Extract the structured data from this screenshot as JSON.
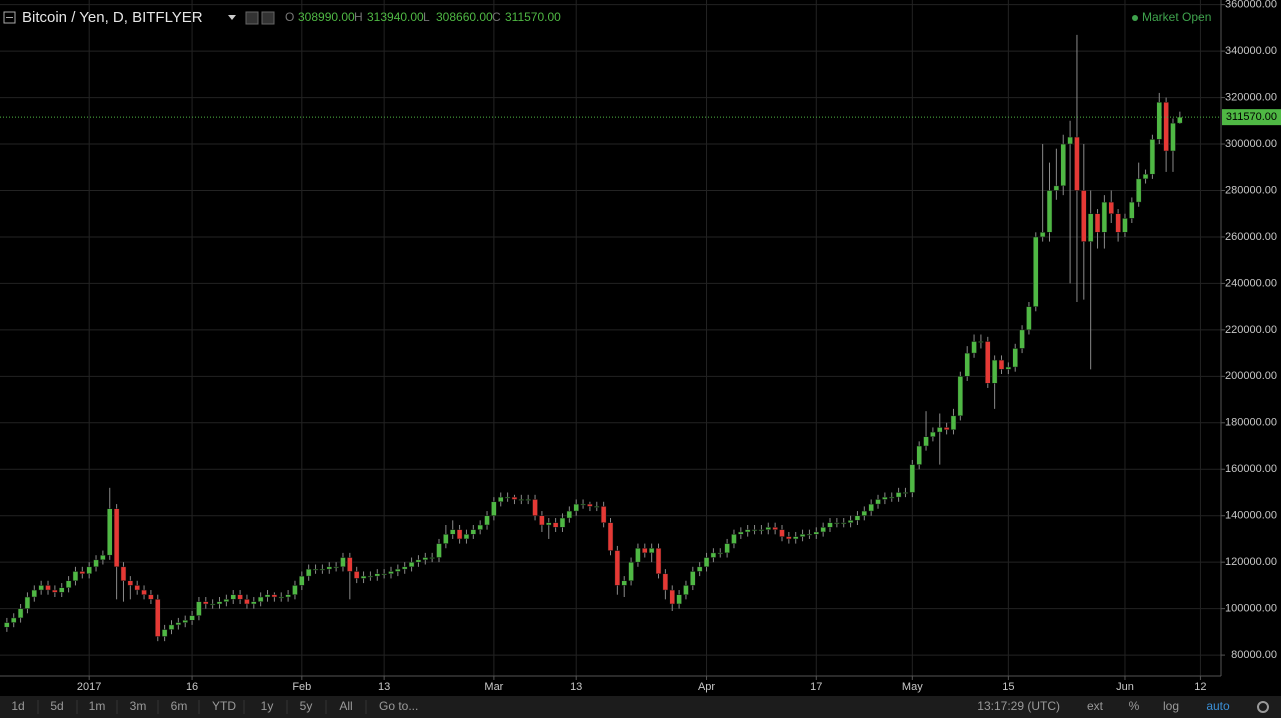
{
  "header": {
    "title": "Bitcoin / Yen, D, BITFLYER",
    "ohlc": [
      {
        "key": "O",
        "label": "308990.00"
      },
      {
        "key": "H",
        "label": "313940.00"
      },
      {
        "key": "L",
        "label": "308660.00"
      },
      {
        "key": "C",
        "label": "311570.00"
      }
    ],
    "status": "Market Open"
  },
  "toolbar": {
    "ranges": [
      "1d",
      "5d",
      "1m",
      "3m",
      "6m",
      "YTD",
      "1y",
      "5y",
      "All"
    ],
    "goto": "Go to...",
    "time": "13:17:29 (UTC)",
    "options": [
      "ext",
      "%",
      "log",
      "auto"
    ]
  },
  "chart_data": {
    "type": "candlestick",
    "up_color": "#4fb844",
    "down_color": "#e53935",
    "grid": true,
    "last_price": {
      "value": 311570,
      "label": "311570.00"
    },
    "xlim": [
      -1,
      177
    ],
    "xticks": [
      {
        "value": 12,
        "label": "2017"
      },
      {
        "value": 27,
        "label": "16"
      },
      {
        "value": 43,
        "label": "Feb"
      },
      {
        "value": 55,
        "label": "13"
      },
      {
        "value": 71,
        "label": "Mar"
      },
      {
        "value": 83,
        "label": "13"
      },
      {
        "value": 102,
        "label": "Apr"
      },
      {
        "value": 118,
        "label": "17"
      },
      {
        "value": 132,
        "label": "May"
      },
      {
        "value": 146,
        "label": "15"
      },
      {
        "value": 163,
        "label": "Jun"
      },
      {
        "value": 174,
        "label": "12"
      }
    ],
    "ylim": [
      71000,
      362000
    ],
    "yticks": [
      {
        "value": 80000,
        "label": "80000.00"
      },
      {
        "value": 100000,
        "label": "100000.00"
      },
      {
        "value": 120000,
        "label": "120000.00"
      },
      {
        "value": 140000,
        "label": "140000.00"
      },
      {
        "value": 160000,
        "label": "160000.00"
      },
      {
        "value": 180000,
        "label": "180000.00"
      },
      {
        "value": 200000,
        "label": "200000.00"
      },
      {
        "value": 220000,
        "label": "220000.00"
      },
      {
        "value": 240000,
        "label": "240000.00"
      },
      {
        "value": 260000,
        "label": "260000.00"
      },
      {
        "value": 280000,
        "label": "280000.00"
      },
      {
        "value": 300000,
        "label": "300000.00"
      },
      {
        "value": 320000,
        "label": "320000.00"
      },
      {
        "value": 340000,
        "label": "340000.00"
      },
      {
        "value": 360000,
        "label": "360000.00"
      }
    ],
    "x": [
      0,
      1,
      2,
      3,
      4,
      5,
      6,
      7,
      8,
      9,
      10,
      11,
      12,
      13,
      14,
      15,
      16,
      17,
      18,
      19,
      20,
      21,
      22,
      23,
      24,
      25,
      26,
      27,
      28,
      29,
      30,
      31,
      32,
      33,
      34,
      35,
      36,
      37,
      38,
      39,
      40,
      41,
      42,
      43,
      44,
      45,
      46,
      47,
      48,
      49,
      50,
      51,
      52,
      53,
      54,
      55,
      56,
      57,
      58,
      59,
      60,
      61,
      62,
      63,
      64,
      65,
      66,
      67,
      68,
      69,
      70,
      71,
      72,
      73,
      74,
      75,
      76,
      77,
      78,
      79,
      80,
      81,
      82,
      83,
      84,
      85,
      86,
      87,
      88,
      89,
      90,
      91,
      92,
      93,
      94,
      95,
      96,
      97,
      98,
      99,
      100,
      101,
      102,
      103,
      104,
      105,
      106,
      107,
      108,
      109,
      110,
      111,
      112,
      113,
      114,
      115,
      116,
      117,
      118,
      119,
      120,
      121,
      122,
      123,
      124,
      125,
      126,
      127,
      128,
      129,
      130,
      131,
      132,
      133,
      134,
      135,
      136,
      137,
      138,
      139,
      140,
      141,
      142,
      143,
      144,
      145,
      146,
      147,
      148,
      149,
      150,
      151,
      152,
      153,
      154,
      155,
      156,
      157,
      158,
      159,
      160,
      161,
      162,
      163,
      164,
      165,
      166,
      167,
      168,
      169,
      170,
      171
    ],
    "candles": [
      [
        92000,
        96000,
        90000,
        94000
      ],
      [
        94000,
        98000,
        92000,
        96000
      ],
      [
        96000,
        102000,
        94000,
        100000
      ],
      [
        100000,
        107000,
        98000,
        105000
      ],
      [
        105000,
        110000,
        103000,
        108000
      ],
      [
        108000,
        112000,
        106000,
        110000
      ],
      [
        110000,
        112000,
        106000,
        108000
      ],
      [
        108000,
        110000,
        105000,
        107000
      ],
      [
        107000,
        111000,
        105000,
        109000
      ],
      [
        109000,
        114000,
        107000,
        112000
      ],
      [
        112000,
        118000,
        110000,
        116000
      ],
      [
        116000,
        118000,
        113000,
        115000
      ],
      [
        115000,
        120000,
        113000,
        118000
      ],
      [
        118000,
        123000,
        116000,
        121000
      ],
      [
        121000,
        125000,
        119000,
        123000
      ],
      [
        123000,
        152000,
        121000,
        143000
      ],
      [
        143000,
        145000,
        104000,
        118000
      ],
      [
        118000,
        120000,
        103000,
        112000
      ],
      [
        112000,
        114000,
        104000,
        110000
      ],
      [
        110000,
        112000,
        106000,
        108000
      ],
      [
        108000,
        110000,
        104000,
        106000
      ],
      [
        106000,
        108000,
        102000,
        104000
      ],
      [
        104000,
        106000,
        86000,
        88000
      ],
      [
        88000,
        93000,
        86000,
        91000
      ],
      [
        91000,
        95000,
        89000,
        93000
      ],
      [
        93000,
        96000,
        91000,
        94000
      ],
      [
        94000,
        97000,
        92000,
        95000
      ],
      [
        95000,
        99000,
        93000,
        97000
      ],
      [
        97000,
        105000,
        95000,
        103000
      ],
      [
        103000,
        105000,
        100000,
        102000
      ],
      [
        102000,
        104000,
        100000,
        102000
      ],
      [
        102000,
        105000,
        100000,
        103000
      ],
      [
        103000,
        106000,
        101000,
        104000
      ],
      [
        104000,
        108000,
        102000,
        106000
      ],
      [
        106000,
        108000,
        102000,
        104000
      ],
      [
        104000,
        106000,
        100000,
        102000
      ],
      [
        102000,
        105000,
        100000,
        103000
      ],
      [
        103000,
        107000,
        101000,
        105000
      ],
      [
        105000,
        108000,
        103000,
        106000
      ],
      [
        106000,
        107000,
        103000,
        105000
      ],
      [
        105000,
        107000,
        103000,
        105000
      ],
      [
        105000,
        108000,
        103000,
        106000
      ],
      [
        106000,
        112000,
        104000,
        110000
      ],
      [
        110000,
        116000,
        108000,
        114000
      ],
      [
        114000,
        119000,
        112000,
        117000
      ],
      [
        117000,
        119000,
        115000,
        117000
      ],
      [
        117000,
        119000,
        115000,
        117000
      ],
      [
        117000,
        120000,
        115000,
        118000
      ],
      [
        118000,
        120000,
        116000,
        118000
      ],
      [
        118000,
        124000,
        116000,
        122000
      ],
      [
        122000,
        124000,
        104000,
        116000
      ],
      [
        116000,
        118000,
        111000,
        113000
      ],
      [
        113000,
        116000,
        111000,
        114000
      ],
      [
        114000,
        116000,
        112000,
        114000
      ],
      [
        114000,
        117000,
        112000,
        115000
      ],
      [
        115000,
        117000,
        113000,
        115000
      ],
      [
        115000,
        118000,
        113000,
        116000
      ],
      [
        116000,
        119000,
        114000,
        117000
      ],
      [
        117000,
        120000,
        115000,
        118000
      ],
      [
        118000,
        122000,
        116000,
        120000
      ],
      [
        120000,
        123000,
        118000,
        121000
      ],
      [
        121000,
        124000,
        119000,
        122000
      ],
      [
        122000,
        124000,
        120000,
        122000
      ],
      [
        122000,
        130000,
        120000,
        128000
      ],
      [
        128000,
        136000,
        126000,
        132000
      ],
      [
        132000,
        138000,
        130000,
        134000
      ],
      [
        134000,
        136000,
        128000,
        130000
      ],
      [
        130000,
        134000,
        128000,
        132000
      ],
      [
        132000,
        136000,
        130000,
        134000
      ],
      [
        134000,
        138000,
        132000,
        136000
      ],
      [
        136000,
        142000,
        134000,
        140000
      ],
      [
        140000,
        148000,
        138000,
        146000
      ],
      [
        146000,
        150000,
        144000,
        148000
      ],
      [
        148000,
        150000,
        146000,
        148000
      ],
      [
        148000,
        149000,
        145000,
        147000
      ],
      [
        147000,
        149000,
        145000,
        147000
      ],
      [
        147000,
        149000,
        145000,
        147000
      ],
      [
        147000,
        149000,
        138000,
        140000
      ],
      [
        140000,
        142000,
        133000,
        136000
      ],
      [
        136000,
        139000,
        130000,
        137000
      ],
      [
        137000,
        139000,
        133000,
        135000
      ],
      [
        135000,
        141000,
        133000,
        139000
      ],
      [
        139000,
        144000,
        137000,
        142000
      ],
      [
        142000,
        147000,
        140000,
        145000
      ],
      [
        145000,
        147000,
        143000,
        145000
      ],
      [
        145000,
        146000,
        142000,
        144000
      ],
      [
        144000,
        146000,
        142000,
        144000
      ],
      [
        144000,
        146000,
        135000,
        137000
      ],
      [
        137000,
        139000,
        123000,
        125000
      ],
      [
        125000,
        127000,
        106000,
        110000
      ],
      [
        110000,
        114000,
        105000,
        112000
      ],
      [
        112000,
        122000,
        110000,
        120000
      ],
      [
        120000,
        128000,
        118000,
        126000
      ],
      [
        126000,
        128000,
        122000,
        124000
      ],
      [
        124000,
        128000,
        120000,
        126000
      ],
      [
        126000,
        128000,
        113000,
        115000
      ],
      [
        115000,
        117000,
        104000,
        108000
      ],
      [
        108000,
        110000,
        99000,
        102000
      ],
      [
        102000,
        108000,
        100000,
        106000
      ],
      [
        106000,
        112000,
        104000,
        110000
      ],
      [
        110000,
        118000,
        108000,
        116000
      ],
      [
        116000,
        120000,
        114000,
        118000
      ],
      [
        118000,
        124000,
        116000,
        122000
      ],
      [
        122000,
        126000,
        120000,
        124000
      ],
      [
        124000,
        126000,
        122000,
        124000
      ],
      [
        124000,
        130000,
        122000,
        128000
      ],
      [
        128000,
        134000,
        126000,
        132000
      ],
      [
        132000,
        135000,
        130000,
        133000
      ],
      [
        133000,
        136000,
        131000,
        134000
      ],
      [
        134000,
        136000,
        132000,
        134000
      ],
      [
        134000,
        136000,
        132000,
        134000
      ],
      [
        134000,
        137000,
        132000,
        135000
      ],
      [
        135000,
        137000,
        132000,
        134000
      ],
      [
        134000,
        136000,
        129000,
        131000
      ],
      [
        131000,
        133000,
        128000,
        130000
      ],
      [
        130000,
        133000,
        128000,
        131000
      ],
      [
        131000,
        134000,
        129000,
        132000
      ],
      [
        132000,
        134000,
        130000,
        132000
      ],
      [
        132000,
        135000,
        130000,
        133000
      ],
      [
        133000,
        137000,
        131000,
        135000
      ],
      [
        135000,
        139000,
        133000,
        137000
      ],
      [
        137000,
        139000,
        135000,
        137000
      ],
      [
        137000,
        139000,
        135000,
        137000
      ],
      [
        137000,
        140000,
        135000,
        138000
      ],
      [
        138000,
        142000,
        136000,
        140000
      ],
      [
        140000,
        144000,
        138000,
        142000
      ],
      [
        142000,
        147000,
        140000,
        145000
      ],
      [
        145000,
        149000,
        143000,
        147000
      ],
      [
        147000,
        150000,
        145000,
        148000
      ],
      [
        148000,
        150000,
        146000,
        148000
      ],
      [
        148000,
        152000,
        146000,
        150000
      ],
      [
        150000,
        152000,
        148000,
        150000
      ],
      [
        150000,
        164000,
        148000,
        162000
      ],
      [
        162000,
        172000,
        160000,
        170000
      ],
      [
        170000,
        185000,
        168000,
        174000
      ],
      [
        174000,
        178000,
        172000,
        176000
      ],
      [
        176000,
        184000,
        162000,
        178000
      ],
      [
        178000,
        180000,
        175000,
        177000
      ],
      [
        177000,
        186000,
        175000,
        183000
      ],
      [
        183000,
        202000,
        181000,
        200000
      ],
      [
        200000,
        213000,
        198000,
        210000
      ],
      [
        210000,
        218000,
        208000,
        215000
      ],
      [
        215000,
        218000,
        212000,
        215000
      ],
      [
        215000,
        217000,
        195000,
        197000
      ],
      [
        197000,
        209000,
        186000,
        207000
      ],
      [
        207000,
        209000,
        201000,
        203000
      ],
      [
        203000,
        206000,
        201000,
        204000
      ],
      [
        204000,
        214000,
        202000,
        212000
      ],
      [
        212000,
        222000,
        210000,
        220000
      ],
      [
        220000,
        232000,
        218000,
        230000
      ],
      [
        230000,
        262000,
        228000,
        260000
      ],
      [
        260000,
        300000,
        258000,
        262000
      ],
      [
        262000,
        292000,
        258000,
        280000
      ],
      [
        280000,
        298000,
        276000,
        282000
      ],
      [
        282000,
        304000,
        278000,
        300000
      ],
      [
        300000,
        310000,
        240000,
        303000
      ],
      [
        303000,
        347000,
        232000,
        280000
      ],
      [
        280000,
        300000,
        233000,
        258000
      ],
      [
        258000,
        280000,
        203000,
        270000
      ],
      [
        270000,
        272000,
        255000,
        262000
      ],
      [
        262000,
        278000,
        255000,
        275000
      ],
      [
        275000,
        280000,
        266000,
        270000
      ],
      [
        270000,
        272000,
        258000,
        262000
      ],
      [
        262000,
        270000,
        260000,
        268000
      ],
      [
        268000,
        277000,
        266000,
        275000
      ],
      [
        275000,
        292000,
        273000,
        285000
      ],
      [
        285000,
        289000,
        283000,
        287000
      ],
      [
        287000,
        304000,
        285000,
        302000
      ],
      [
        302000,
        322000,
        300000,
        318000
      ],
      [
        318000,
        320000,
        288000,
        297000
      ],
      [
        297000,
        311000,
        288000,
        309000
      ],
      [
        308990,
        313940,
        308660,
        311570
      ]
    ]
  }
}
